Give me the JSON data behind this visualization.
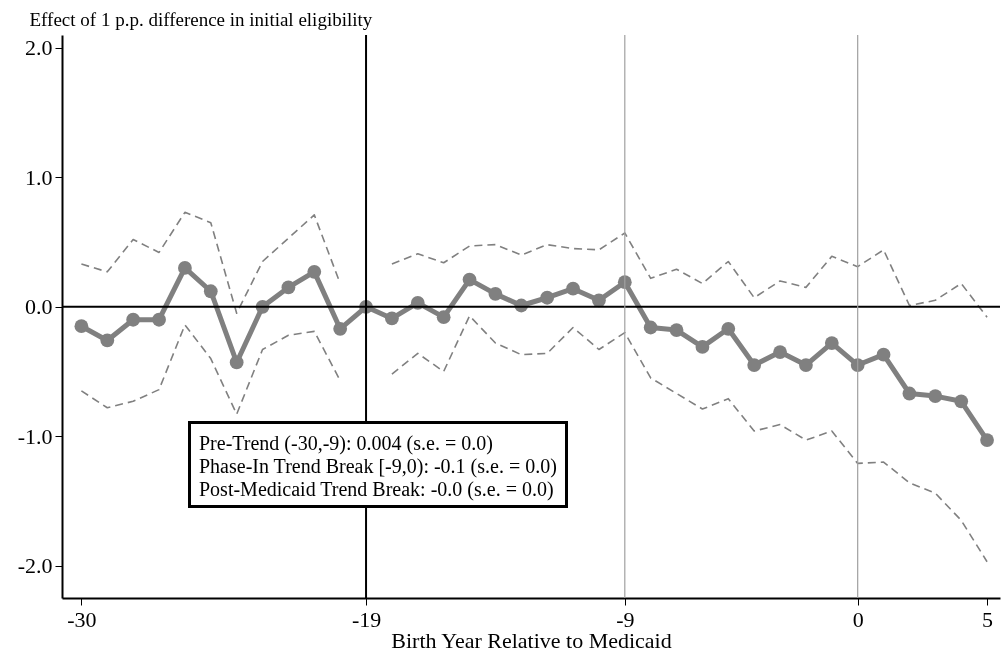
{
  "chart_data": {
    "type": "line",
    "ylabel": "Effect of 1 p.p. difference in initial eligibility",
    "xlabel": "Birth Year Relative to Medicaid",
    "x": [
      -30,
      -29,
      -28,
      -27,
      -26,
      -25,
      -24,
      -23,
      -22,
      -21,
      -20,
      -19,
      -18,
      -17,
      -16,
      -15,
      -14,
      -13,
      -12,
      -11,
      -10,
      -9,
      -8,
      -7,
      -6,
      -5,
      -4,
      -3,
      -2,
      -1,
      0,
      1,
      2,
      3,
      4,
      5
    ],
    "series": [
      {
        "color": "#808080",
        "marker": "circle",
        "line_style": "solid",
        "values": [
          -0.15,
          -0.26,
          -0.1,
          -0.1,
          0.3,
          0.12,
          -0.43,
          0.0,
          0.15,
          0.27,
          -0.17,
          0.0,
          -0.09,
          0.03,
          -0.08,
          0.21,
          0.1,
          0.01,
          0.07,
          0.14,
          0.05,
          0.19,
          -0.16,
          -0.18,
          -0.31,
          -0.17,
          -0.45,
          -0.35,
          -0.45,
          -0.28,
          -0.45,
          -0.37,
          -0.67,
          -0.69,
          -0.73,
          -1.03
        ]
      },
      {
        "color": "#808080",
        "marker": "none",
        "line_style": "dashed",
        "values": [
          0.33,
          0.27,
          0.52,
          0.42,
          0.73,
          0.65,
          -0.05,
          0.35,
          0.53,
          0.71,
          0.18,
          null,
          0.33,
          0.41,
          0.34,
          0.47,
          0.48,
          0.4,
          0.48,
          0.45,
          0.44,
          0.57,
          0.22,
          0.29,
          0.18,
          0.35,
          0.07,
          0.2,
          0.15,
          0.39,
          0.31,
          0.44,
          0.01,
          0.05,
          0.18,
          -0.08
        ]
      },
      {
        "color": "#808080",
        "marker": "none",
        "line_style": "dashed",
        "values": [
          -0.65,
          -0.78,
          -0.73,
          -0.64,
          -0.14,
          -0.4,
          -0.83,
          -0.33,
          -0.22,
          -0.19,
          -0.57,
          null,
          -0.52,
          -0.36,
          -0.5,
          -0.07,
          -0.28,
          -0.37,
          -0.36,
          -0.16,
          -0.33,
          -0.2,
          -0.55,
          -0.67,
          -0.79,
          -0.71,
          -0.96,
          -0.91,
          -1.03,
          -0.96,
          -1.21,
          -1.2,
          -1.36,
          -1.44,
          -1.65,
          -1.97
        ]
      }
    ],
    "xlim": [
      -30.75,
      5.5
    ],
    "ylim": [
      -2.25,
      2.1
    ],
    "xticks": [
      -30,
      -19,
      -9,
      0,
      5
    ],
    "yticks": [
      {
        "value": -2,
        "label": "-2.0"
      },
      {
        "value": -1,
        "label": "-1.0"
      },
      {
        "value": 0,
        "label": "0.0"
      },
      {
        "value": 1,
        "label": "1.0"
      },
      {
        "value": 2,
        "label": "2.0"
      }
    ],
    "ref_lines": [
      {
        "axis": "y",
        "value": 0,
        "color": "#000000"
      },
      {
        "axis": "x",
        "value": -19,
        "color": "#000000"
      },
      {
        "axis": "x",
        "value": -9,
        "color": "#a0a0a0"
      },
      {
        "axis": "x",
        "value": 0,
        "color": "#a0a0a0"
      }
    ],
    "annotations": [
      "Pre-Trend (-30,-9): 0.004 (s.e. = 0.0)",
      "Phase-In Trend Break [-9,0): -0.1 (s.e. = 0.0)",
      "Post-Medicaid Trend Break: -0.0 (s.e. = 0.0)"
    ],
    "grid": false
  }
}
